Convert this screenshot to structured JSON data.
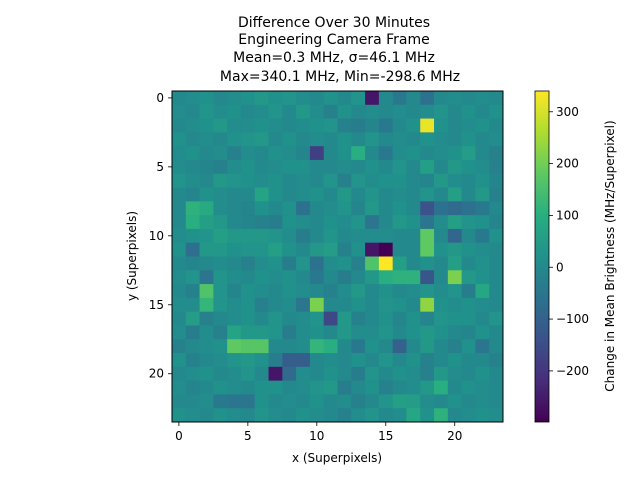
{
  "chart_data": {
    "type": "heatmap",
    "title_lines": [
      "Difference Over 30 Minutes",
      "Engineering Camera Frame",
      "Mean=0.3 MHz, σ=46.1 MHz",
      "Max=340.1 MHz, Min=-298.6 MHz"
    ],
    "xlabel": "x (Superpixels)",
    "ylabel": "y (Superpixels)",
    "colorbar_label": "Change in Mean Brightness (MHz/Superpixel)",
    "colormap": "viridis",
    "vmin": -298.6,
    "vmax": 340.1,
    "grid": false,
    "x_ticks": [
      "0",
      "5",
      "10",
      "15",
      "20"
    ],
    "y_ticks": [
      "0",
      "5",
      "10",
      "15",
      "20"
    ],
    "colorbar_ticks": [
      "300",
      "200",
      "100",
      "0",
      "−100",
      "−200"
    ],
    "x_tick_values": [
      0,
      5,
      10,
      15,
      20
    ],
    "y_tick_values": [
      0,
      5,
      10,
      15,
      20
    ],
    "colorbar_tick_values": [
      300,
      200,
      100,
      0,
      -100,
      -200
    ],
    "grid_size": [
      24,
      24
    ],
    "values": [
      [
        0,
        10,
        20,
        0,
        10,
        20,
        40,
        20,
        30,
        10,
        0,
        20,
        0,
        30,
        -260,
        0,
        -40,
        0,
        -60,
        0,
        10,
        0,
        10,
        0
      ],
      [
        10,
        0,
        30,
        10,
        20,
        0,
        10,
        30,
        0,
        40,
        10,
        -20,
        20,
        0,
        10,
        0,
        10,
        0,
        10,
        30,
        0,
        20,
        0,
        20
      ],
      [
        0,
        10,
        20,
        40,
        10,
        10,
        20,
        10,
        0,
        10,
        20,
        30,
        -20,
        -30,
        -10,
        -40,
        0,
        20,
        320,
        20,
        0,
        10,
        20,
        0
      ],
      [
        20,
        0,
        10,
        0,
        20,
        30,
        40,
        0,
        20,
        0,
        10,
        0,
        20,
        0,
        30,
        0,
        10,
        0,
        20,
        10,
        0,
        20,
        0,
        10
      ],
      [
        10,
        20,
        0,
        10,
        -20,
        10,
        0,
        20,
        10,
        -10,
        -180,
        0,
        20,
        100,
        0,
        -40,
        10,
        20,
        0,
        10,
        20,
        50,
        0,
        -20
      ],
      [
        10,
        0,
        -10,
        -20,
        10,
        20,
        0,
        10,
        20,
        20,
        0,
        0,
        10,
        0,
        20,
        0,
        30,
        0,
        60,
        0,
        40,
        20,
        10,
        -20
      ],
      [
        30,
        10,
        0,
        40,
        30,
        20,
        10,
        20,
        0,
        10,
        0,
        30,
        -20,
        30,
        10,
        20,
        20,
        0,
        -10,
        40,
        10,
        0,
        20,
        -10
      ],
      [
        0,
        -10,
        20,
        10,
        0,
        0,
        70,
        20,
        0,
        10,
        20,
        0,
        40,
        0,
        30,
        0,
        10,
        0,
        30,
        0,
        60,
        0,
        40,
        -20
      ],
      [
        0,
        110,
        90,
        10,
        0,
        -10,
        20,
        0,
        20,
        -60,
        0,
        10,
        30,
        -10,
        40,
        0,
        20,
        0,
        -140,
        -60,
        -80,
        -60,
        -40,
        0
      ],
      [
        0,
        100,
        60,
        40,
        0,
        -10,
        -20,
        -30,
        20,
        10,
        0,
        20,
        10,
        30,
        -50,
        0,
        40,
        20,
        -50,
        10,
        60,
        30,
        20,
        -10
      ],
      [
        10,
        20,
        30,
        60,
        40,
        40,
        40,
        30,
        10,
        -30,
        0,
        30,
        0,
        10,
        10,
        10,
        0,
        0,
        180,
        0,
        -90,
        0,
        -40,
        20
      ],
      [
        20,
        -70,
        40,
        40,
        20,
        30,
        30,
        60,
        20,
        0,
        40,
        50,
        -20,
        20,
        -260,
        -300,
        0,
        0,
        180,
        20,
        40,
        20,
        10,
        0
      ],
      [
        0,
        -10,
        0,
        10,
        0,
        -20,
        10,
        20,
        -30,
        30,
        -60,
        10,
        20,
        -20,
        160,
        340,
        60,
        0,
        20,
        0,
        60,
        0,
        20,
        0
      ],
      [
        10,
        30,
        -50,
        30,
        10,
        0,
        20,
        10,
        20,
        0,
        -40,
        0,
        -30,
        0,
        40,
        100,
        110,
        110,
        -130,
        0,
        210,
        40,
        20,
        0
      ],
      [
        0,
        -20,
        160,
        30,
        -10,
        20,
        10,
        0,
        20,
        10,
        0,
        -20,
        10,
        40,
        0,
        20,
        0,
        10,
        30,
        10,
        30,
        -30,
        80,
        0
      ],
      [
        10,
        10,
        120,
        30,
        10,
        20,
        -20,
        0,
        10,
        -50,
        210,
        0,
        0,
        20,
        0,
        30,
        20,
        0,
        230,
        20,
        10,
        20,
        10,
        0
      ],
      [
        0,
        50,
        -20,
        0,
        10,
        20,
        0,
        30,
        0,
        10,
        30,
        -160,
        40,
        -20,
        0,
        20,
        -10,
        20,
        -10,
        30,
        20,
        20,
        0,
        30
      ],
      [
        10,
        -30,
        10,
        -20,
        70,
        40,
        40,
        30,
        -30,
        10,
        20,
        0,
        40,
        10,
        10,
        30,
        0,
        20,
        40,
        20,
        0,
        -10,
        20,
        0
      ],
      [
        -20,
        0,
        10,
        20,
        180,
        170,
        170,
        0,
        0,
        10,
        120,
        100,
        0,
        -40,
        20,
        0,
        -100,
        0,
        40,
        0,
        -20,
        20,
        -50,
        0
      ],
      [
        20,
        -20,
        0,
        10,
        30,
        40,
        20,
        -30,
        -110,
        -110,
        0,
        10,
        0,
        20,
        0,
        30,
        0,
        20,
        -20,
        0,
        20,
        0,
        0,
        -20
      ],
      [
        0,
        10,
        20,
        0,
        10,
        30,
        0,
        -260,
        -80,
        10,
        0,
        20,
        0,
        -30,
        30,
        0,
        20,
        10,
        -20,
        40,
        10,
        0,
        20,
        0
      ],
      [
        10,
        -10,
        0,
        20,
        10,
        0,
        20,
        20,
        0,
        10,
        30,
        40,
        -30,
        0,
        20,
        -20,
        0,
        10,
        40,
        100,
        0,
        20,
        10,
        0
      ],
      [
        0,
        0,
        10,
        -40,
        -50,
        -50,
        20,
        0,
        10,
        0,
        20,
        0,
        10,
        -20,
        0,
        30,
        60,
        50,
        10,
        0,
        20,
        0,
        10,
        0
      ],
      [
        20,
        10,
        0,
        20,
        10,
        0,
        30,
        10,
        0,
        20,
        10,
        0,
        -20,
        10,
        30,
        0,
        10,
        80,
        20,
        110,
        0,
        10,
        20,
        10
      ]
    ]
  }
}
